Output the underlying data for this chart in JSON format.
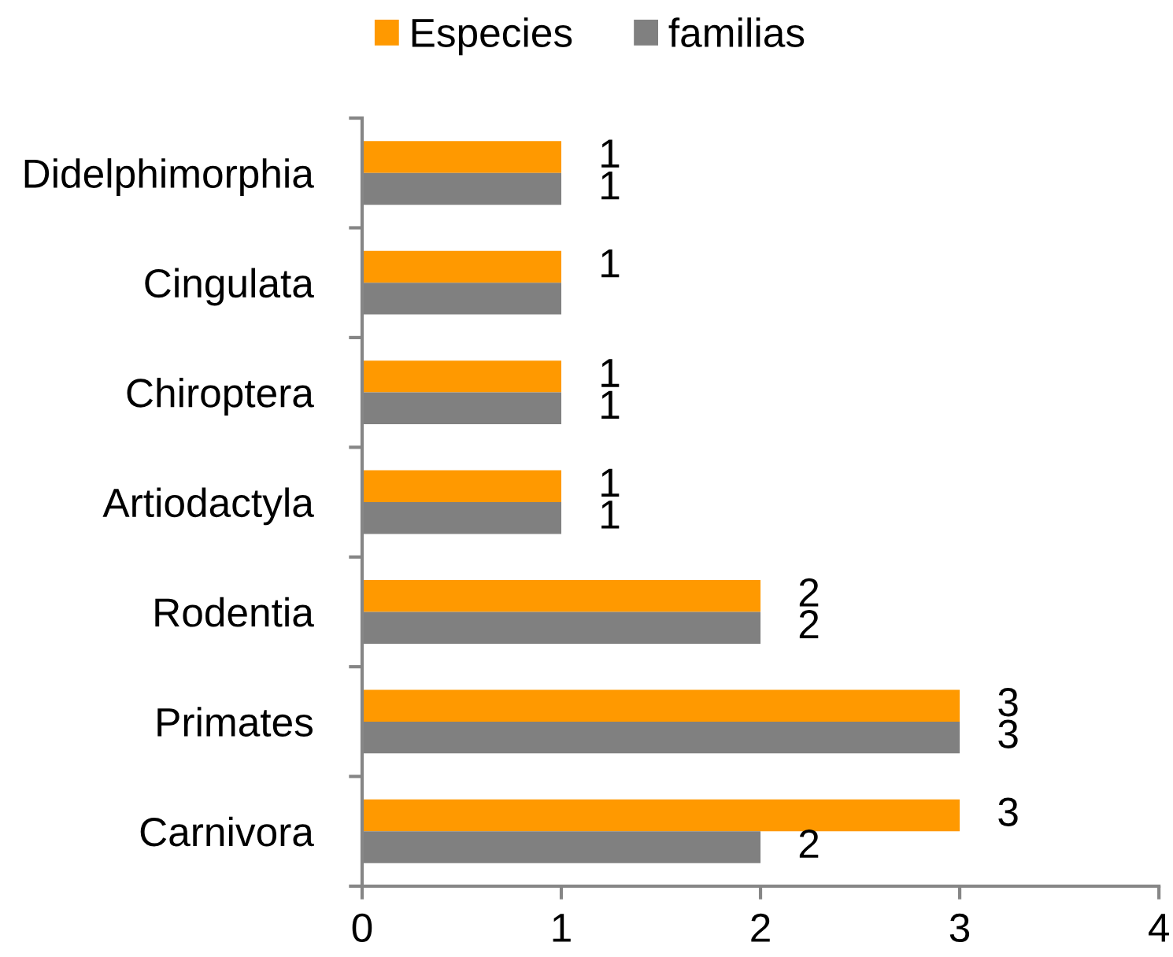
{
  "chart_data": {
    "type": "bar",
    "orientation": "horizontal",
    "categories": [
      "Didelphimorphia",
      "Cingulata",
      "Chiroptera",
      "Artiodactyla",
      "Rodentia",
      "Primates",
      "Carnivora"
    ],
    "series": [
      {
        "name": "Especies",
        "color": "#ff9900",
        "values": [
          1,
          1,
          1,
          1,
          2,
          3,
          3
        ],
        "value_labels": [
          "1",
          "1",
          "1",
          "1",
          "2",
          "3",
          "3"
        ]
      },
      {
        "name": "familias",
        "color": "#808080",
        "values": [
          1,
          1,
          1,
          1,
          2,
          3,
          2
        ],
        "value_labels": [
          "1",
          null,
          "1",
          "1",
          "2",
          "3",
          "2"
        ]
      }
    ],
    "xlim": [
      0,
      4
    ],
    "xticks": [
      0,
      1,
      2,
      3,
      4
    ],
    "legend": "top"
  }
}
